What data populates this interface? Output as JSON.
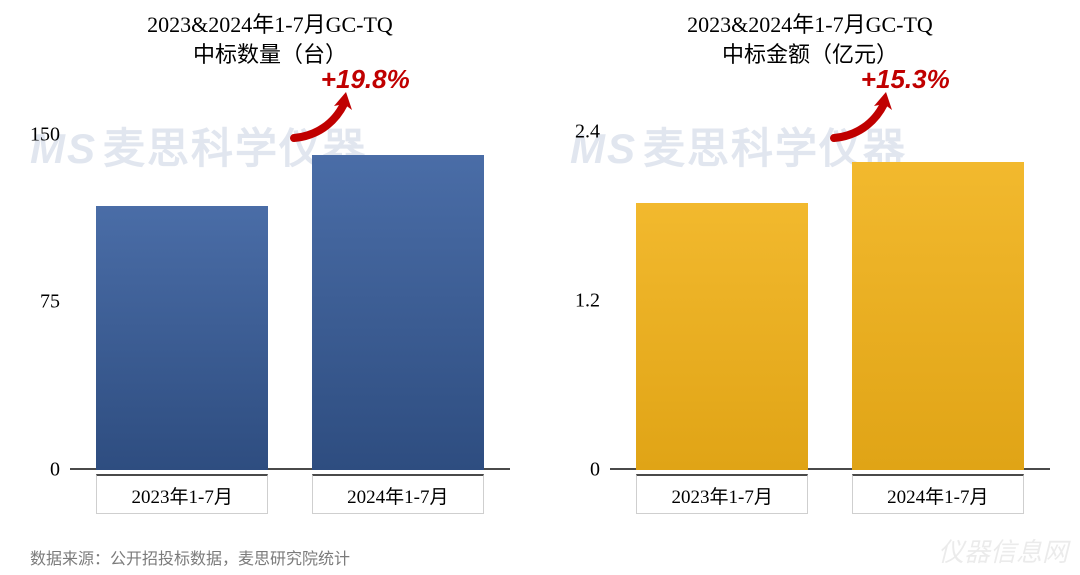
{
  "source_note": "数据来源：公开招投标数据，麦思研究院统计",
  "watermark": {
    "logo": "MS",
    "text": "麦思科学仪器",
    "color": "rgba(120,140,180,0.22)"
  },
  "watermark2": "仪器信息网",
  "left_chart": {
    "type": "bar",
    "title_line1": "2023&2024年1-7月GC-TQ",
    "title_line2": "中标数量（台）",
    "categories": [
      "2023年1-7月",
      "2024年1-7月"
    ],
    "values": [
      118,
      141
    ],
    "growth_label": "+19.8%",
    "growth_color": "#c00000",
    "bar_color_top": "#4a6da7",
    "bar_color_bottom": "#2e4d80",
    "ylim": [
      0,
      170
    ],
    "yticks": [
      0,
      75,
      150
    ],
    "ytick_labels": [
      "0",
      "75",
      "150"
    ],
    "bar_width_pct": 39,
    "bar_left_pct": [
      6,
      55
    ],
    "background_color": "#ffffff",
    "axis_color": "#4a4a4a",
    "title_fontsize": 22,
    "label_fontsize": 19,
    "tick_fontsize": 20
  },
  "right_chart": {
    "type": "bar",
    "title_line1": "2023&2024年1-7月GC-TQ",
    "title_line2": "中标金额（亿元）",
    "categories": [
      "2023年1-7月",
      "2024年1-7月"
    ],
    "values": [
      1.9,
      2.19
    ],
    "growth_label": "+15.3%",
    "growth_color": "#c00000",
    "bar_color_top": "#f2b92e",
    "bar_color_bottom": "#e0a416",
    "ylim": [
      0,
      2.7
    ],
    "yticks": [
      0,
      1.2,
      2.4
    ],
    "ytick_labels": [
      "0",
      "1.2",
      "2.4"
    ],
    "bar_width_pct": 39,
    "bar_left_pct": [
      6,
      55
    ],
    "background_color": "#ffffff",
    "axis_color": "#4a4a4a",
    "title_fontsize": 22,
    "label_fontsize": 19,
    "tick_fontsize": 20
  }
}
